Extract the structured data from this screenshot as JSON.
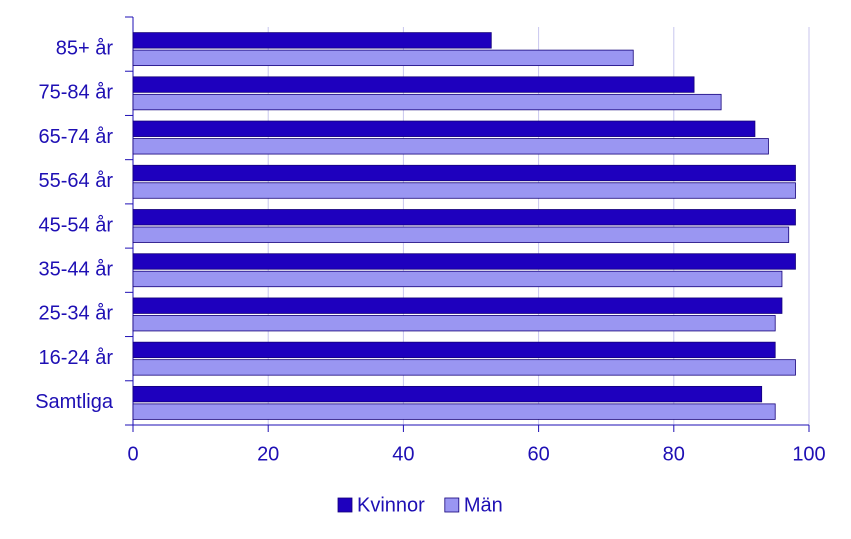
{
  "chart_data": {
    "type": "bar",
    "orientation": "horizontal",
    "categories": [
      "85+ år",
      "75-84 år",
      "65-74 år",
      "55-64 år",
      "45-54 år",
      "35-44 år",
      "25-34 år",
      "16-24 år",
      "Samtliga"
    ],
    "series": [
      {
        "name": "Kvinnor",
        "color": "#1e00be",
        "values": [
          53,
          83,
          92,
          98,
          98,
          98,
          96,
          95,
          93
        ]
      },
      {
        "name": "Män",
        "color": "#9a96f2",
        "values": [
          74,
          87,
          94,
          98,
          97,
          96,
          95,
          98,
          95
        ]
      }
    ],
    "xlim": [
      0,
      100
    ],
    "xticks": [
      0,
      20,
      40,
      60,
      80,
      100
    ],
    "grid": true,
    "legend": "bottom"
  }
}
